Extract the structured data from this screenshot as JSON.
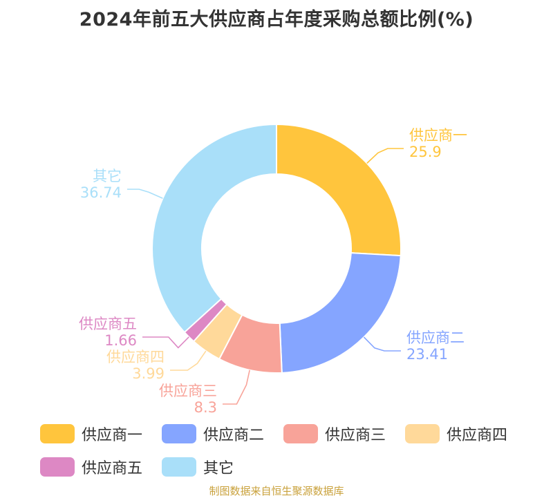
{
  "title": "2024年前五大供应商占年度采购总额比例(%)",
  "source": "制图数据来自恒生聚源数据库",
  "chart_data": {
    "type": "pie",
    "variant": "donut",
    "title": "2024年前五大供应商占年度采购总额比例(%)",
    "legend_position": "bottom",
    "slices": [
      {
        "name": "供应商一",
        "value": 25.9,
        "label": "25.9",
        "color": "#FFC53D"
      },
      {
        "name": "供应商二",
        "value": 23.41,
        "label": "23.41",
        "color": "#85A5FF"
      },
      {
        "name": "供应商三",
        "value": 8.3,
        "label": "8.3",
        "color": "#F8A399"
      },
      {
        "name": "供应商四",
        "value": 3.99,
        "label": "3.99",
        "color": "#FFD99A"
      },
      {
        "name": "供应商五",
        "value": 1.66,
        "label": "1.66",
        "color": "#DD88C4"
      },
      {
        "name": "其它",
        "value": 36.74,
        "label": "36.74",
        "color": "#A9DFF9"
      }
    ]
  }
}
